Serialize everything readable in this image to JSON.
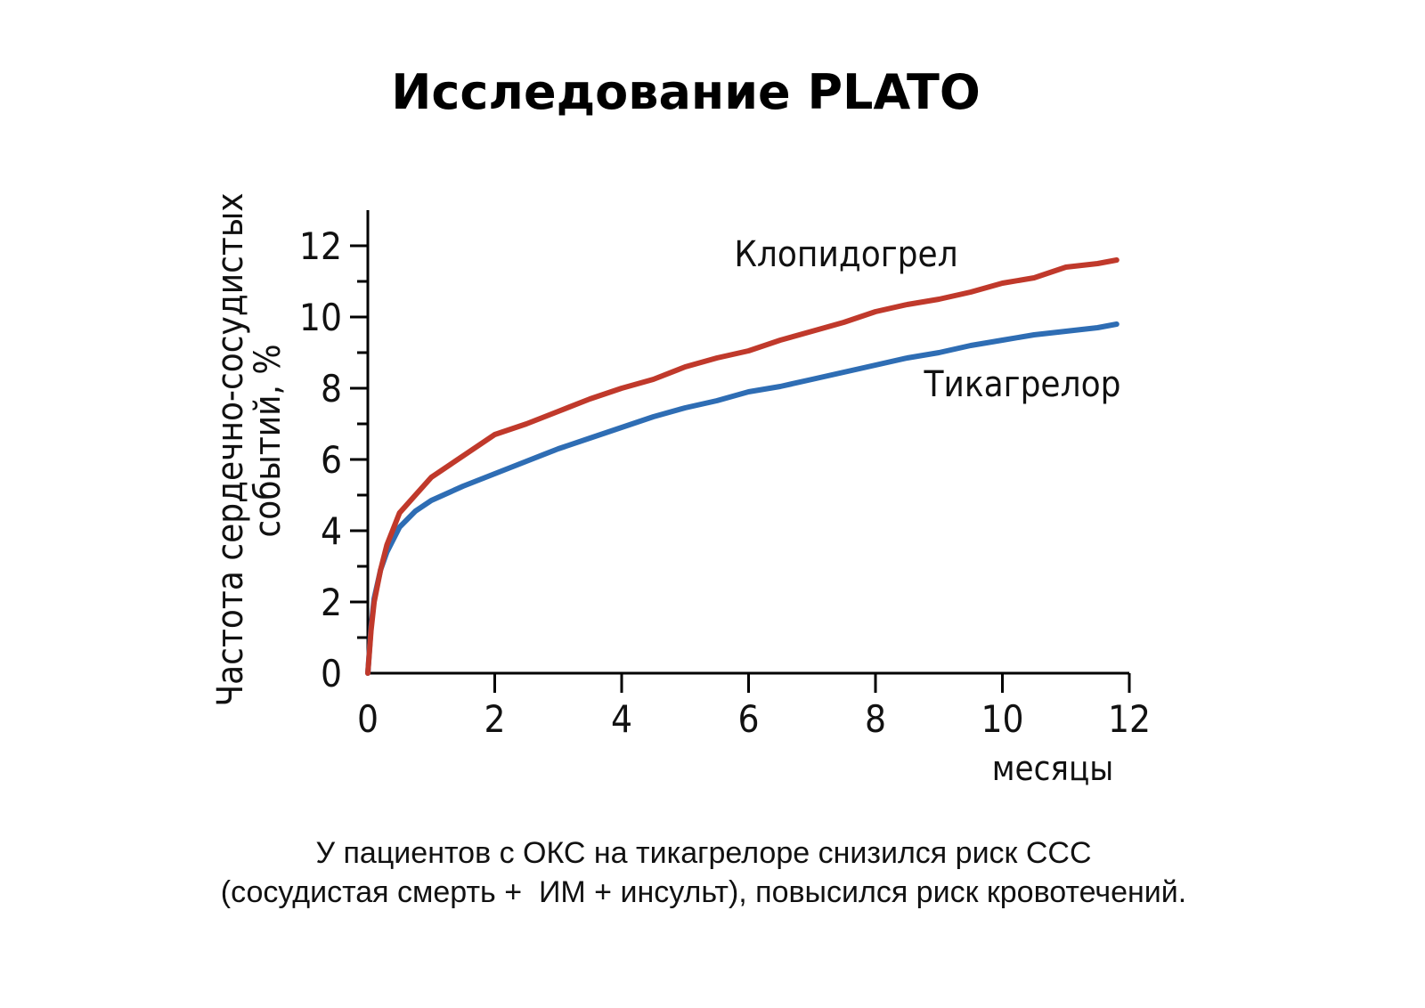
{
  "page": {
    "title": "Исследование PLATO",
    "caption_lines": [
      "У пациентов с ОКС на тикагрелоре снизился риск ССС",
      "(сосудистая смерть +  ИМ + инсульт), повысился риск кровотечений."
    ]
  },
  "chart_data": {
    "type": "line",
    "title": "",
    "xlabel": "месяцы",
    "ylabel_lines": [
      "Частота сердечно-сосудистых",
      "событий, %"
    ],
    "xlim": [
      0,
      12
    ],
    "ylim": [
      0,
      13
    ],
    "xticks": [
      0,
      2,
      4,
      6,
      8,
      10,
      12
    ],
    "yticks": [
      0,
      2,
      4,
      6,
      8,
      10,
      12
    ],
    "grid": false,
    "series": [
      {
        "name": "Клопидогрел",
        "color": "#c0392b",
        "x": [
          0,
          0.05,
          0.1,
          0.2,
          0.3,
          0.5,
          0.75,
          1,
          1.5,
          2,
          2.5,
          3,
          3.5,
          4,
          4.5,
          5,
          5.5,
          6,
          6.5,
          7,
          7.5,
          8,
          8.5,
          9,
          9.5,
          10,
          10.5,
          11,
          11.5,
          11.8
        ],
        "y": [
          0,
          1.2,
          2.0,
          2.9,
          3.6,
          4.5,
          5.0,
          5.5,
          6.1,
          6.7,
          7.0,
          7.35,
          7.7,
          8.0,
          8.25,
          8.6,
          8.85,
          9.05,
          9.35,
          9.6,
          9.85,
          10.15,
          10.35,
          10.5,
          10.7,
          10.95,
          11.1,
          11.4,
          11.5,
          11.6
        ]
      },
      {
        "name": "Тикагрелор",
        "color": "#2e6db4",
        "x": [
          0,
          0.05,
          0.1,
          0.2,
          0.3,
          0.5,
          0.75,
          1,
          1.5,
          2,
          2.5,
          3,
          3.5,
          4,
          4.5,
          5,
          5.5,
          6,
          6.5,
          7,
          7.5,
          8,
          8.5,
          9,
          9.5,
          10,
          10.5,
          11,
          11.5,
          11.8
        ],
        "y": [
          0,
          1.3,
          2.1,
          2.9,
          3.4,
          4.1,
          4.55,
          4.85,
          5.25,
          5.6,
          5.95,
          6.3,
          6.6,
          6.9,
          7.2,
          7.45,
          7.65,
          7.9,
          8.05,
          8.25,
          8.45,
          8.65,
          8.85,
          9.0,
          9.2,
          9.35,
          9.5,
          9.6,
          9.7,
          9.8
        ]
      }
    ]
  }
}
